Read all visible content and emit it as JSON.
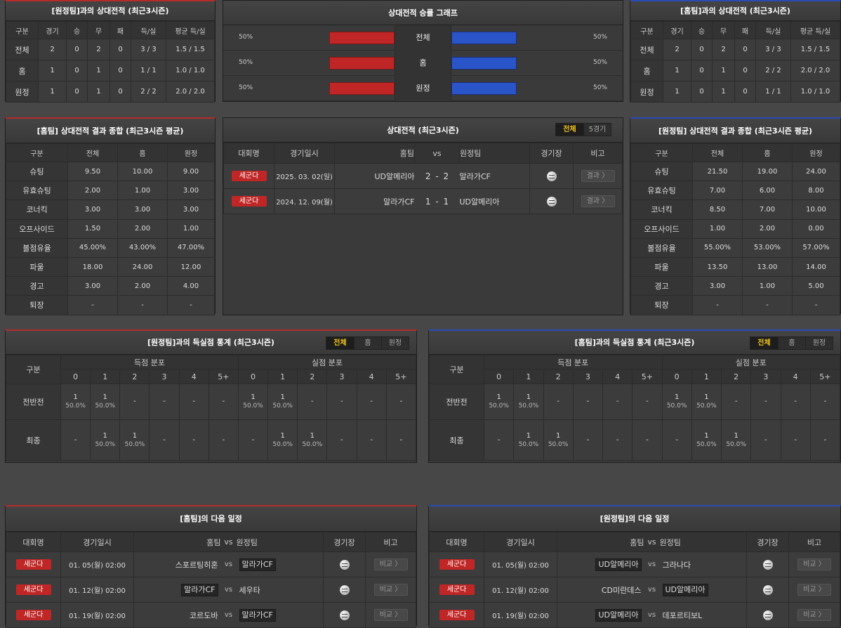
{
  "h2h_left": {
    "title": "[원정팀]과의 상대전적 (최근3시즌)",
    "headers": [
      "구분",
      "경기",
      "승",
      "무",
      "패",
      "득/실",
      "평균 득/실"
    ],
    "rows": [
      [
        "전체",
        "2",
        "0",
        "2",
        "0",
        "3 / 3",
        "1.5 / 1.5"
      ],
      [
        "홈",
        "1",
        "0",
        "1",
        "0",
        "1 / 1",
        "1.0 / 1.0"
      ],
      [
        "원정",
        "1",
        "0",
        "1",
        "0",
        "2 / 2",
        "2.0 / 2.0"
      ]
    ]
  },
  "graph": {
    "title": "상대전적 승률 그래프",
    "rows": [
      {
        "left": "50%",
        "label": "전체",
        "right": "50%",
        "home_ratio": 0.5,
        "away_ratio": 0.5
      },
      {
        "left": "50%",
        "label": "홈",
        "right": "50%",
        "home_ratio": 0.5,
        "away_ratio": 0.5
      },
      {
        "left": "50%",
        "label": "원정",
        "right": "50%",
        "home_ratio": 0.5,
        "away_ratio": 0.5
      }
    ]
  },
  "h2h_right": {
    "title": "[홈팀]과의 상대전적 (최근3시즌)",
    "headers": [
      "구분",
      "경기",
      "승",
      "무",
      "패",
      "득/실",
      "평균 득/실"
    ],
    "rows": [
      [
        "전체",
        "2",
        "0",
        "2",
        "0",
        "3 / 3",
        "1.5 / 1.5"
      ],
      [
        "홈",
        "1",
        "0",
        "1",
        "0",
        "2 / 2",
        "2.0 / 2.0"
      ],
      [
        "원정",
        "1",
        "0",
        "1",
        "0",
        "1 / 1",
        "1.0 / 1.0"
      ]
    ]
  },
  "summary_home": {
    "title": "[홈팀] 상대전적 결과 종합 (최근3시즌 평균)",
    "headers": [
      "구분",
      "전체",
      "홈",
      "원정"
    ],
    "rows": [
      [
        "슈팅",
        "9.50",
        "10.00",
        "9.00"
      ],
      [
        "유효슈팅",
        "2.00",
        "1.00",
        "3.00"
      ],
      [
        "코너킥",
        "3.00",
        "3.00",
        "3.00"
      ],
      [
        "오프사이드",
        "1.50",
        "2.00",
        "1.00"
      ],
      [
        "볼점유율",
        "45.00%",
        "43.00%",
        "47.00%"
      ],
      [
        "파울",
        "18.00",
        "24.00",
        "12.00"
      ],
      [
        "경고",
        "3.00",
        "2.00",
        "4.00"
      ],
      [
        "퇴장",
        "-",
        "-",
        "-"
      ]
    ]
  },
  "h2h_matches": {
    "title": "상대전적 (최근3시즌)",
    "tabs": [
      "전체",
      "5경기"
    ],
    "headers": {
      "league": "대회명",
      "date": "경기일시",
      "home": "홈팀",
      "vs": "vs",
      "away": "원정팀",
      "venue": "경기장",
      "note": "비고"
    },
    "rows": [
      {
        "league": "세군다",
        "date": "2025. 03. 02(일)",
        "home": "UD알메리아",
        "score": "2 - 2",
        "away": "말라가CF",
        "btn": "결과 〉"
      },
      {
        "league": "세군다",
        "date": "2024. 12. 09(월)",
        "home": "말라가CF",
        "score": "1 - 1",
        "away": "UD알메리아",
        "btn": "결과 〉"
      }
    ]
  },
  "summary_away": {
    "title": "[원정팀] 상대전적 결과 종합 (최근3시즌 평균)",
    "headers": [
      "구분",
      "전체",
      "홈",
      "원정"
    ],
    "rows": [
      [
        "슈팅",
        "21.50",
        "19.00",
        "24.00"
      ],
      [
        "유효슈팅",
        "7.00",
        "6.00",
        "8.00"
      ],
      [
        "코너킥",
        "8.50",
        "7.00",
        "10.00"
      ],
      [
        "오프사이드",
        "1.00",
        "2.00",
        "0.00"
      ],
      [
        "볼점유율",
        "55.00%",
        "53.00%",
        "57.00%"
      ],
      [
        "파울",
        "13.50",
        "13.00",
        "14.00"
      ],
      [
        "경고",
        "3.00",
        "1.00",
        "5.00"
      ],
      [
        "퇴장",
        "-",
        "-",
        "-"
      ]
    ]
  },
  "goals_left": {
    "title": "[원정팀]과의 득실점 통계 (최근3시즌)",
    "tabs": [
      "전체",
      "홈",
      "원정"
    ],
    "h_gubun": "구분",
    "h_scored": "득점 분포",
    "h_conceded": "실점 분포",
    "cols": [
      "0",
      "1",
      "2",
      "3",
      "4",
      "5+"
    ],
    "rows": [
      {
        "label": "전반전",
        "cells": [
          [
            "1",
            "50.0%"
          ],
          [
            "1",
            "50.0%"
          ],
          [
            "-",
            ""
          ],
          [
            "-",
            ""
          ],
          [
            "-",
            ""
          ],
          [
            "-",
            ""
          ],
          [
            "1",
            "50.0%"
          ],
          [
            "1",
            "50.0%"
          ],
          [
            "-",
            ""
          ],
          [
            "-",
            ""
          ],
          [
            "-",
            ""
          ],
          [
            "-",
            ""
          ]
        ]
      },
      {
        "label": "최종",
        "cells": [
          [
            "-",
            ""
          ],
          [
            "1",
            "50.0%"
          ],
          [
            "1",
            "50.0%"
          ],
          [
            "-",
            ""
          ],
          [
            "-",
            ""
          ],
          [
            "-",
            ""
          ],
          [
            "-",
            ""
          ],
          [
            "1",
            "50.0%"
          ],
          [
            "1",
            "50.0%"
          ],
          [
            "-",
            ""
          ],
          [
            "-",
            ""
          ],
          [
            "-",
            ""
          ]
        ]
      }
    ]
  },
  "goals_right": {
    "title": "[홈팀]과의 득실점 통계 (최근3시즌)",
    "tabs": [
      "전체",
      "홈",
      "원정"
    ],
    "h_gubun": "구분",
    "h_scored": "득점 분포",
    "h_conceded": "실점 분포",
    "cols": [
      "0",
      "1",
      "2",
      "3",
      "4",
      "5+"
    ],
    "rows": [
      {
        "label": "전반전",
        "cells": [
          [
            "1",
            "50.0%"
          ],
          [
            "1",
            "50.0%"
          ],
          [
            "-",
            ""
          ],
          [
            "-",
            ""
          ],
          [
            "-",
            ""
          ],
          [
            "-",
            ""
          ],
          [
            "1",
            "50.0%"
          ],
          [
            "1",
            "50.0%"
          ],
          [
            "-",
            ""
          ],
          [
            "-",
            ""
          ],
          [
            "-",
            ""
          ],
          [
            "-",
            ""
          ]
        ]
      },
      {
        "label": "최종",
        "cells": [
          [
            "-",
            ""
          ],
          [
            "1",
            "50.0%"
          ],
          [
            "1",
            "50.0%"
          ],
          [
            "-",
            ""
          ],
          [
            "-",
            ""
          ],
          [
            "-",
            ""
          ],
          [
            "-",
            ""
          ],
          [
            "1",
            "50.0%"
          ],
          [
            "1",
            "50.0%"
          ],
          [
            "-",
            ""
          ],
          [
            "-",
            ""
          ],
          [
            "-",
            ""
          ]
        ]
      }
    ]
  },
  "next_home": {
    "title": "[홈팀]의 다음 일정",
    "headers": {
      "league": "대회명",
      "date": "경기일시",
      "home": "홈팀",
      "vs": "vs",
      "away": "원정팀",
      "venue": "경기장",
      "note": "비고"
    },
    "rows": [
      {
        "league": "세군다",
        "date": "01. 05(월) 02:00",
        "home": "스포르팅히혼",
        "away": "말라가CF",
        "hl": "away",
        "btn": "비교 〉"
      },
      {
        "league": "세군다",
        "date": "01. 12(월) 02:00",
        "home": "말라가CF",
        "away": "세우타",
        "hl": "home",
        "btn": "비교 〉"
      },
      {
        "league": "세군다",
        "date": "01. 19(월) 02:00",
        "home": "코르도바",
        "away": "말라가CF",
        "hl": "away",
        "btn": "비교 〉"
      }
    ]
  },
  "next_away": {
    "title": "[원정팀]의 다음 일정",
    "headers": {
      "league": "대회명",
      "date": "경기일시",
      "home": "홈팀",
      "vs": "vs",
      "away": "원정팀",
      "venue": "경기장",
      "note": "비고"
    },
    "rows": [
      {
        "league": "세군다",
        "date": "01. 05(월) 02:00",
        "home": "UD알메리아",
        "away": "그라나다",
        "hl": "home",
        "btn": "비교 〉"
      },
      {
        "league": "세군다",
        "date": "01. 12(월) 02:00",
        "home": "CD미란데스",
        "away": "UD알메리아",
        "hl": "away",
        "btn": "비교 〉"
      },
      {
        "league": "세군다",
        "date": "01. 19(월) 02:00",
        "home": "UD알메리아",
        "away": "데포르티보L",
        "hl": "home",
        "btn": "비교 〉"
      }
    ]
  }
}
